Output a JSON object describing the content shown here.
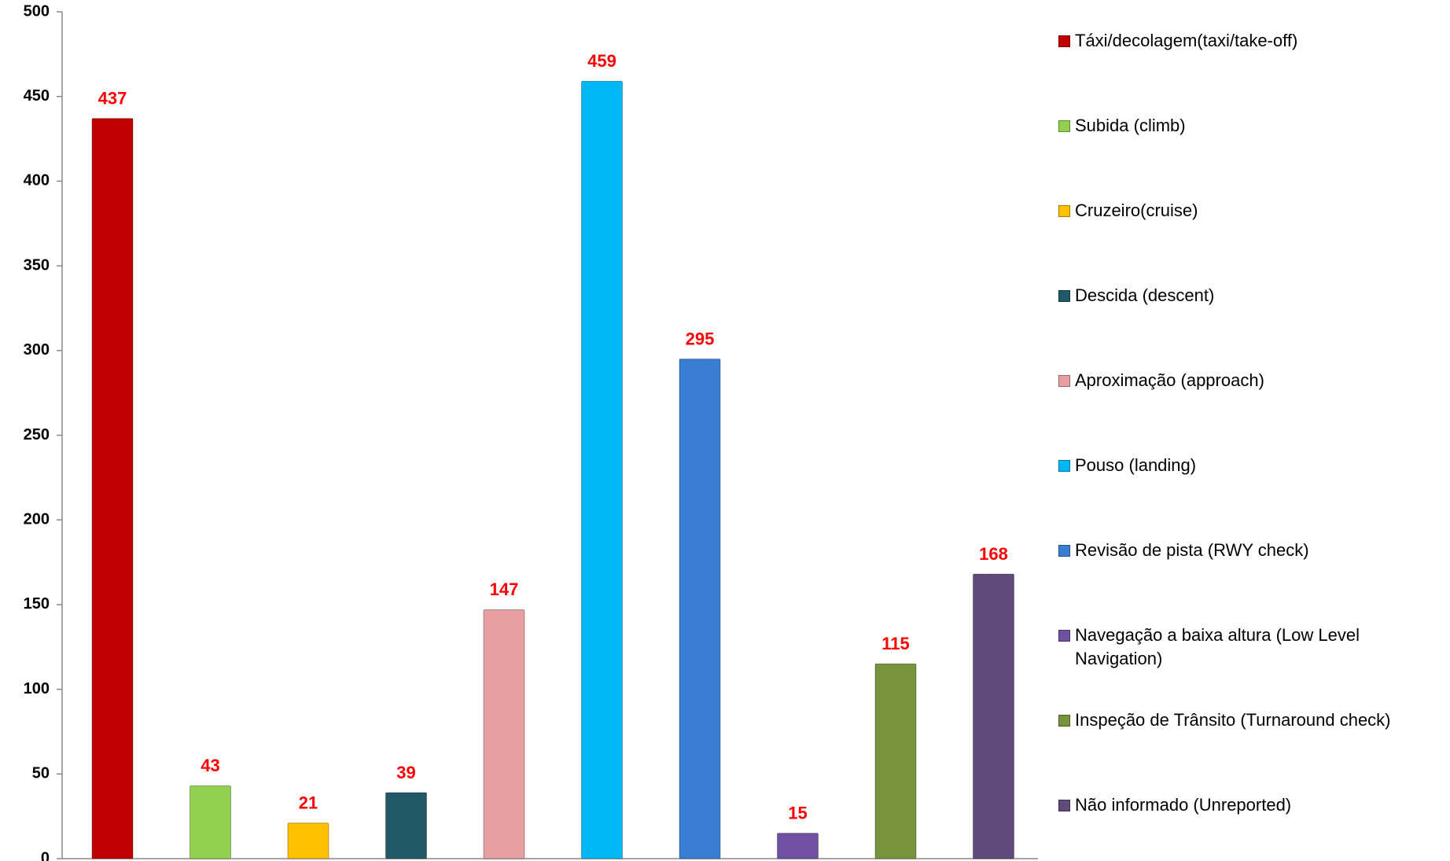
{
  "chart_data": {
    "type": "bar",
    "series": [
      {
        "name": "Táxi/decolagem(taxi/take-off)",
        "color": "#c00000",
        "values": [
          437
        ]
      },
      {
        "name": "Subida (climb)",
        "color": "#92d050",
        "values": [
          43
        ]
      },
      {
        "name": "Cruzeiro(cruise)",
        "color": "#ffc000",
        "values": [
          21
        ]
      },
      {
        "name": "Descida (descent)",
        "color": "#215968",
        "values": [
          39
        ]
      },
      {
        "name": "Aproximação (approach)",
        "color": "#e6a0a0",
        "values": [
          147
        ]
      },
      {
        "name": "Pouso (landing)",
        "color": "#00b8f5",
        "values": [
          459
        ]
      },
      {
        "name": "Revisão de pista (RWY check)",
        "color": "#3a7dd4",
        "values": [
          295
        ]
      },
      {
        "name": "Navegação a baixa altura (Low Level Navigation)",
        "color": "#7050a0",
        "values": [
          15
        ]
      },
      {
        "name": "Inspeção de Trânsito (Turnaround check)",
        "color": "#77933c",
        "values": [
          115
        ]
      },
      {
        "name": "Não informado (Unreported)",
        "color": "#604a7b",
        "values": [
          168
        ]
      }
    ],
    "ylim": [
      0,
      500
    ],
    "yticks": [
      0,
      50,
      100,
      150,
      200,
      250,
      300,
      350,
      400,
      450,
      500
    ],
    "grid": false,
    "legend": "right",
    "value_label_color": "#ff0000"
  }
}
